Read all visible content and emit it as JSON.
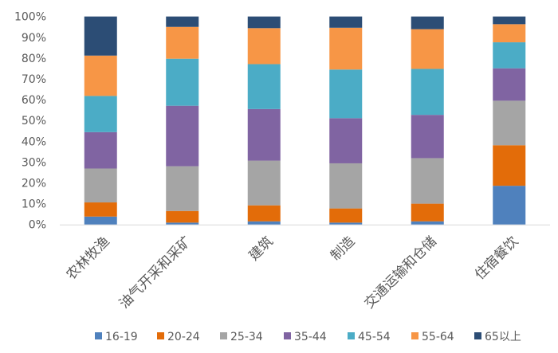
{
  "chart_data": {
    "type": "bar",
    "stacked": true,
    "percent": true,
    "categories": [
      "农林牧渔",
      "油气开采和采矿",
      "建筑",
      "制造",
      "交通运输和仓储",
      "住宿餐饮"
    ],
    "series": [
      {
        "name": "16-19",
        "color": "#4f81bd",
        "values": [
          3.8,
          0.9,
          1.5,
          0.9,
          1.5,
          18.6
        ]
      },
      {
        "name": "20-24",
        "color": "#e36c09",
        "values": [
          6.8,
          5.6,
          7.7,
          6.8,
          8.5,
          19.5
        ]
      },
      {
        "name": "25-34",
        "color": "#a5a5a5",
        "values": [
          16.3,
          21.5,
          21.5,
          21.7,
          21.9,
          21.4
        ]
      },
      {
        "name": "35-44",
        "color": "#8064a2",
        "values": [
          17.5,
          29.1,
          24.8,
          21.7,
          20.8,
          15.6
        ]
      },
      {
        "name": "45-54",
        "color": "#4bacc6",
        "values": [
          17.4,
          22.6,
          21.6,
          23.4,
          22.1,
          12.5
        ]
      },
      {
        "name": "55-64",
        "color": "#f79646",
        "values": [
          19.4,
          15.3,
          17.3,
          20.1,
          19.1,
          8.7
        ]
      },
      {
        "name": "65以上",
        "color": "#2c4d75",
        "values": [
          18.8,
          5.0,
          5.6,
          5.4,
          6.1,
          3.7
        ]
      }
    ],
    "yticks": [
      "0%",
      "10%",
      "20%",
      "30%",
      "40%",
      "50%",
      "60%",
      "70%",
      "80%",
      "90%",
      "100%"
    ],
    "ylim": [
      0,
      100
    ],
    "grid": false,
    "legend": "bottom"
  }
}
